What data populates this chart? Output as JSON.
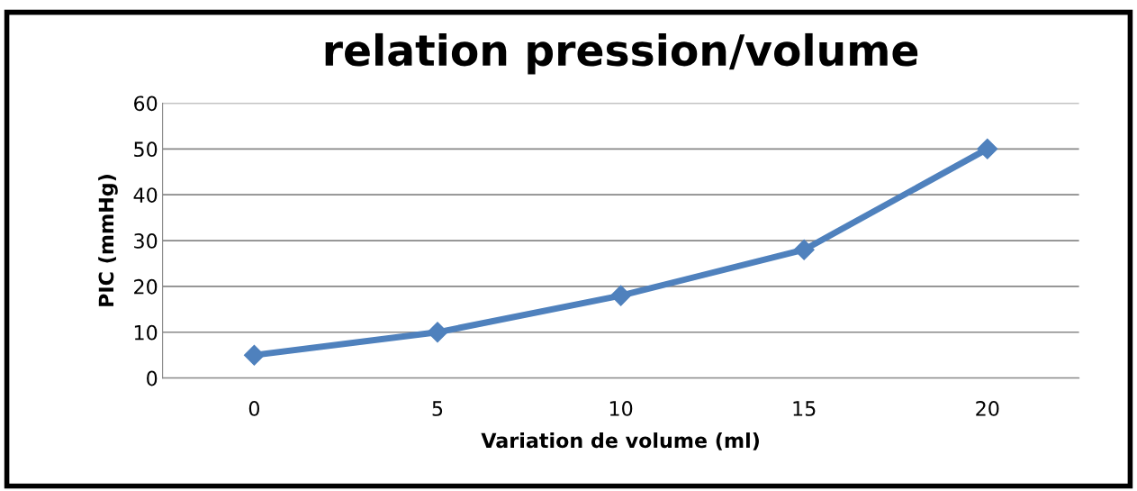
{
  "chart_data": {
    "type": "line",
    "title": "relation pression/volume",
    "xlabel": "Variation de volume (ml)",
    "ylabel": "PIC (mmHg)",
    "categories": [
      "0",
      "5",
      "10",
      "15",
      "20"
    ],
    "series": [
      {
        "color": "#4f81bd",
        "values": [
          5,
          10,
          18,
          28,
          50
        ]
      }
    ],
    "ylim": [
      0,
      60
    ],
    "yticks": [
      0,
      10,
      20,
      30,
      40,
      50,
      60
    ],
    "grid": "y",
    "marker": "diamond",
    "line_style": "solid",
    "legend": false
  }
}
